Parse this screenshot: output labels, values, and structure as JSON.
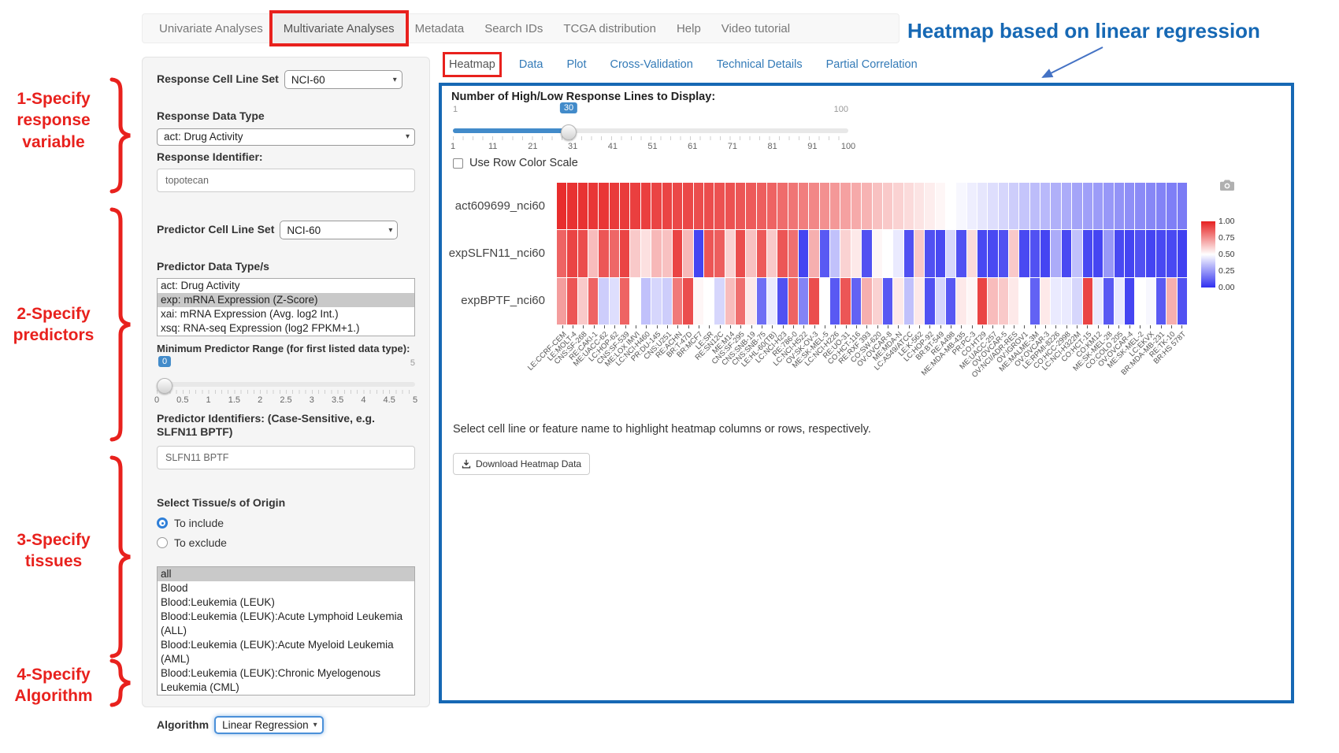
{
  "colors": {
    "annotation_red": "#e8211d",
    "heading_blue": "#1668b4",
    "panel_border_blue": "#1668b4",
    "link_blue": "#337ab7",
    "slider_blue": "#428bca",
    "heat_high_red": "#e62020",
    "heat_mid_white": "#ffffff",
    "heat_low_blue": "#3030f0"
  },
  "nav": {
    "items": [
      {
        "label": "Univariate Analyses",
        "active": false,
        "annotated": false
      },
      {
        "label": "Multivariate Analyses",
        "active": true,
        "annotated": true
      },
      {
        "label": "Metadata",
        "active": false,
        "annotated": false
      },
      {
        "label": "Search IDs",
        "active": false,
        "annotated": false
      },
      {
        "label": "TCGA distribution",
        "active": false,
        "annotated": false
      },
      {
        "label": "Help",
        "active": false,
        "annotated": false
      },
      {
        "label": "Video tutorial",
        "active": false,
        "annotated": false
      }
    ]
  },
  "annotations": {
    "heading": "Heatmap based on linear regression",
    "steps": [
      {
        "label": "1-Specify\nresponse\nvariable"
      },
      {
        "label": "2-Specify\npredictors"
      },
      {
        "label": "3-Specify\ntissues"
      },
      {
        "label": "4-Specify\nAlgorithm"
      }
    ]
  },
  "sidebar": {
    "response_cell_line_set": {
      "label": "Response Cell Line Set",
      "value": "NCI-60"
    },
    "response_data_type": {
      "label": "Response Data Type",
      "value": "act: Drug Activity"
    },
    "response_identifier": {
      "label": "Response Identifier:",
      "value": "topotecan"
    },
    "predictor_cell_line_set": {
      "label": "Predictor Cell Line Set",
      "value": "NCI-60"
    },
    "predictor_data_types": {
      "label": "Predictor Data Type/s",
      "options": [
        {
          "label": "act: Drug Activity",
          "selected": false
        },
        {
          "label": "exp: mRNA Expression (Z-Score)",
          "selected": true
        },
        {
          "label": "xai: mRNA Expression (Avg. log2 Int.)",
          "selected": false
        },
        {
          "label": "xsq: RNA-seq Expression (log2 FPKM+1.)",
          "selected": false
        }
      ]
    },
    "min_predictor_range": {
      "label": "Minimum Predictor Range (for first listed data type):",
      "value": 0,
      "min": 0,
      "max": 5,
      "max_label": "5",
      "ticks": [
        "0",
        "0.5",
        "1",
        "1.5",
        "2",
        "2.5",
        "3",
        "3.5",
        "4",
        "4.5",
        "5"
      ]
    },
    "predictor_identifiers": {
      "label": "Predictor Identifiers: (Case-Sensitive, e.g. SLFN11 BPTF)",
      "value": "SLFN11 BPTF"
    },
    "tissue": {
      "label": "Select Tissue/s of Origin",
      "radios": [
        {
          "label": "To include",
          "selected": true
        },
        {
          "label": "To exclude",
          "selected": false
        }
      ],
      "options": [
        {
          "label": "all",
          "selected": true
        },
        {
          "label": "Blood",
          "selected": false
        },
        {
          "label": "Blood:Leukemia (LEUK)",
          "selected": false
        },
        {
          "label": "Blood:Leukemia (LEUK):Acute Lymphoid Leukemia (ALL)",
          "selected": false
        },
        {
          "label": "Blood:Leukemia (LEUK):Acute Myeloid Leukemia (AML)",
          "selected": false
        },
        {
          "label": "Blood:Leukemia (LEUK):Chronic Myelogenous Leukemia (CML)",
          "selected": false
        }
      ]
    },
    "algorithm": {
      "label": "Algorithm",
      "value": "Linear Regression"
    }
  },
  "tabs": [
    {
      "label": "Heatmap",
      "active": true,
      "annotated": true
    },
    {
      "label": "Data",
      "active": false,
      "annotated": false
    },
    {
      "label": "Plot",
      "active": false,
      "annotated": false
    },
    {
      "label": "Cross-Validation",
      "active": false,
      "annotated": false
    },
    {
      "label": "Technical Details",
      "active": false,
      "annotated": false
    },
    {
      "label": "Partial Correlation",
      "active": false,
      "annotated": false
    }
  ],
  "panel": {
    "lines_slider": {
      "label": "Number of High/Low Response Lines to Display:",
      "min": 1,
      "max": 100,
      "value": 30,
      "min_label": "1",
      "max_label": "100",
      "ticks": [
        "1",
        "11",
        "21",
        "31",
        "41",
        "51",
        "61",
        "71",
        "81",
        "91",
        "100"
      ]
    },
    "row_color_scale": {
      "label": "Use Row Color Scale",
      "checked": false
    },
    "note": "Select cell line or feature name to highlight heatmap columns or rows, respectively.",
    "download_button": "Download Heatmap Data"
  },
  "chart_data": {
    "type": "heatmap",
    "rows": [
      "act609699_nci60",
      "expSLFN11_nci60",
      "expBPTF_nci60"
    ],
    "columns": [
      "LE:CCRF-CEM",
      "LE:MOLT-4",
      "CNS:SF-268",
      "RE:CAKI-1",
      "ME:UACC-62",
      "LC:HOP-62",
      "CNS:SF-539",
      "ME:LOX IMVI",
      "LC:NCI-H460",
      "PR:DU-145",
      "CNS:U251",
      "RE:ACHN",
      "BR:T-47D",
      "BR:MCF7",
      "LE:SR",
      "RE:SN12C",
      "ME:M14",
      "CNS:SF-295",
      "CNS:SNB-19",
      "CNS:SNB-75",
      "LE:HL-60(TB)",
      "LC:NCI-H23",
      "RE:786-0",
      "LC:NCI-H522",
      "OV:SK-OV-3",
      "ME:SK-MEL-5",
      "LC:NCI-H226",
      "RE:UO-31",
      "CO:HCT-116",
      "RE:RXF 393",
      "CO:SW-620",
      "OV:OVCAR-8",
      "ME:MDA-N",
      "LC:A549/ATCC",
      "LE:K-562",
      "LC:HOP-92",
      "BR:BT-549",
      "RE:A498",
      "ME:MDA-MB-435",
      "PR:PC-3",
      "CO:HT29",
      "ME:UACC-257",
      "OV:OVCAR-5",
      "OV:NCI/ADR-RES",
      "OV:IGROV1",
      "ME:MALME-3M",
      "OV:OVCAR-3",
      "LE:RPMI-8226",
      "CO:HCC-2998",
      "LC:NCI-H322M",
      "CO:HCT-15",
      "CO:KM12",
      "ME:SK-MEL-28",
      "CO:COLO 205",
      "OV:OVCAR-4",
      "ME:SK-MEL-2",
      "LC:EKVX",
      "BR:MDA-MB-231",
      "RE:TK-10",
      "BR:HS 578T"
    ],
    "values": [
      [
        0.97,
        0.96,
        0.96,
        0.95,
        0.95,
        0.94,
        0.94,
        0.93,
        0.93,
        0.92,
        0.92,
        0.91,
        0.91,
        0.9,
        0.9,
        0.89,
        0.89,
        0.88,
        0.87,
        0.86,
        0.85,
        0.83,
        0.81,
        0.79,
        0.77,
        0.75,
        0.73,
        0.71,
        0.69,
        0.67,
        0.64,
        0.62,
        0.6,
        0.58,
        0.56,
        0.54,
        0.52,
        0.5,
        0.48,
        0.46,
        0.44,
        0.42,
        0.4,
        0.38,
        0.36,
        0.34,
        0.33,
        0.31,
        0.3,
        0.28,
        0.27,
        0.26,
        0.25,
        0.24,
        0.23,
        0.22,
        0.21,
        0.2,
        0.19,
        0.18
      ],
      [
        0.85,
        0.92,
        0.9,
        0.65,
        0.88,
        0.84,
        0.92,
        0.62,
        0.57,
        0.66,
        0.64,
        0.92,
        0.66,
        0.05,
        0.88,
        0.86,
        0.6,
        0.9,
        0.64,
        0.87,
        0.62,
        0.88,
        0.82,
        0.05,
        0.68,
        0.1,
        0.35,
        0.6,
        0.55,
        0.08,
        0.52,
        0.5,
        0.45,
        0.08,
        0.62,
        0.08,
        0.06,
        0.4,
        0.08,
        0.58,
        0.06,
        0.06,
        0.08,
        0.62,
        0.06,
        0.08,
        0.05,
        0.3,
        0.06,
        0.35,
        0.06,
        0.05,
        0.25,
        0.06,
        0.05,
        0.08,
        0.05,
        0.06,
        0.06,
        0.04
      ],
      [
        0.72,
        0.88,
        0.62,
        0.85,
        0.38,
        0.42,
        0.85,
        0.5,
        0.35,
        0.4,
        0.38,
        0.8,
        0.9,
        0.52,
        0.5,
        0.4,
        0.65,
        0.82,
        0.55,
        0.15,
        0.45,
        0.08,
        0.85,
        0.2,
        0.9,
        0.5,
        0.1,
        0.88,
        0.12,
        0.68,
        0.6,
        0.1,
        0.55,
        0.35,
        0.55,
        0.08,
        0.4,
        0.1,
        0.55,
        0.52,
        0.92,
        0.65,
        0.62,
        0.55,
        0.5,
        0.12,
        0.55,
        0.45,
        0.45,
        0.4,
        0.92,
        0.45,
        0.1,
        0.45,
        0.05,
        0.5,
        0.48,
        0.1,
        0.68,
        0.08
      ]
    ],
    "colorbar_ticks": [
      "1.00",
      "0.75",
      "0.50",
      "0.25",
      "0.00"
    ],
    "color_scale": {
      "high": "#e62020",
      "mid": "#ffffff",
      "low": "#3030f0",
      "domain": [
        0,
        1
      ]
    },
    "legend_position": "right",
    "grid_gaps": true
  }
}
